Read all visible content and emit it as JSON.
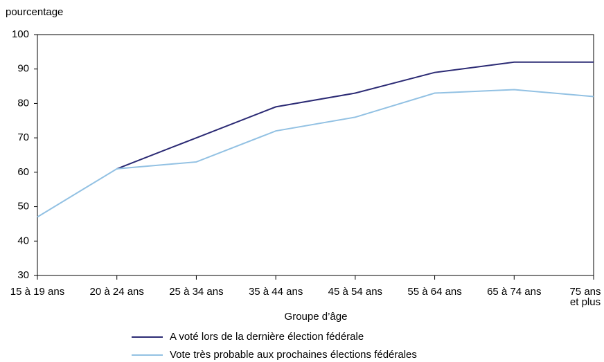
{
  "chart_data": {
    "type": "line",
    "y_label": "pourcentage",
    "x_label": "Groupe d’âge",
    "categories": [
      "15 à 19 ans",
      "20 à 24 ans",
      "25 à 34 ans",
      "35 à 44 ans",
      "45 à 54 ans",
      "55 à 64 ans",
      "65 à 74 ans",
      "75 ans et plus"
    ],
    "series": [
      {
        "name": "A voté lors de la dernière élection fédérale",
        "color": "#2b2a74",
        "values": [
          null,
          61,
          70,
          79,
          83,
          89,
          92,
          92
        ]
      },
      {
        "name": "Vote très probable aux prochaines élections fédérales",
        "color": "#92c1e3",
        "values": [
          47,
          61,
          63,
          72,
          76,
          83,
          84,
          82
        ]
      }
    ],
    "ylim": [
      30,
      100
    ],
    "yticks": [
      30,
      40,
      50,
      60,
      70,
      80,
      90,
      100
    ],
    "grid": false
  }
}
